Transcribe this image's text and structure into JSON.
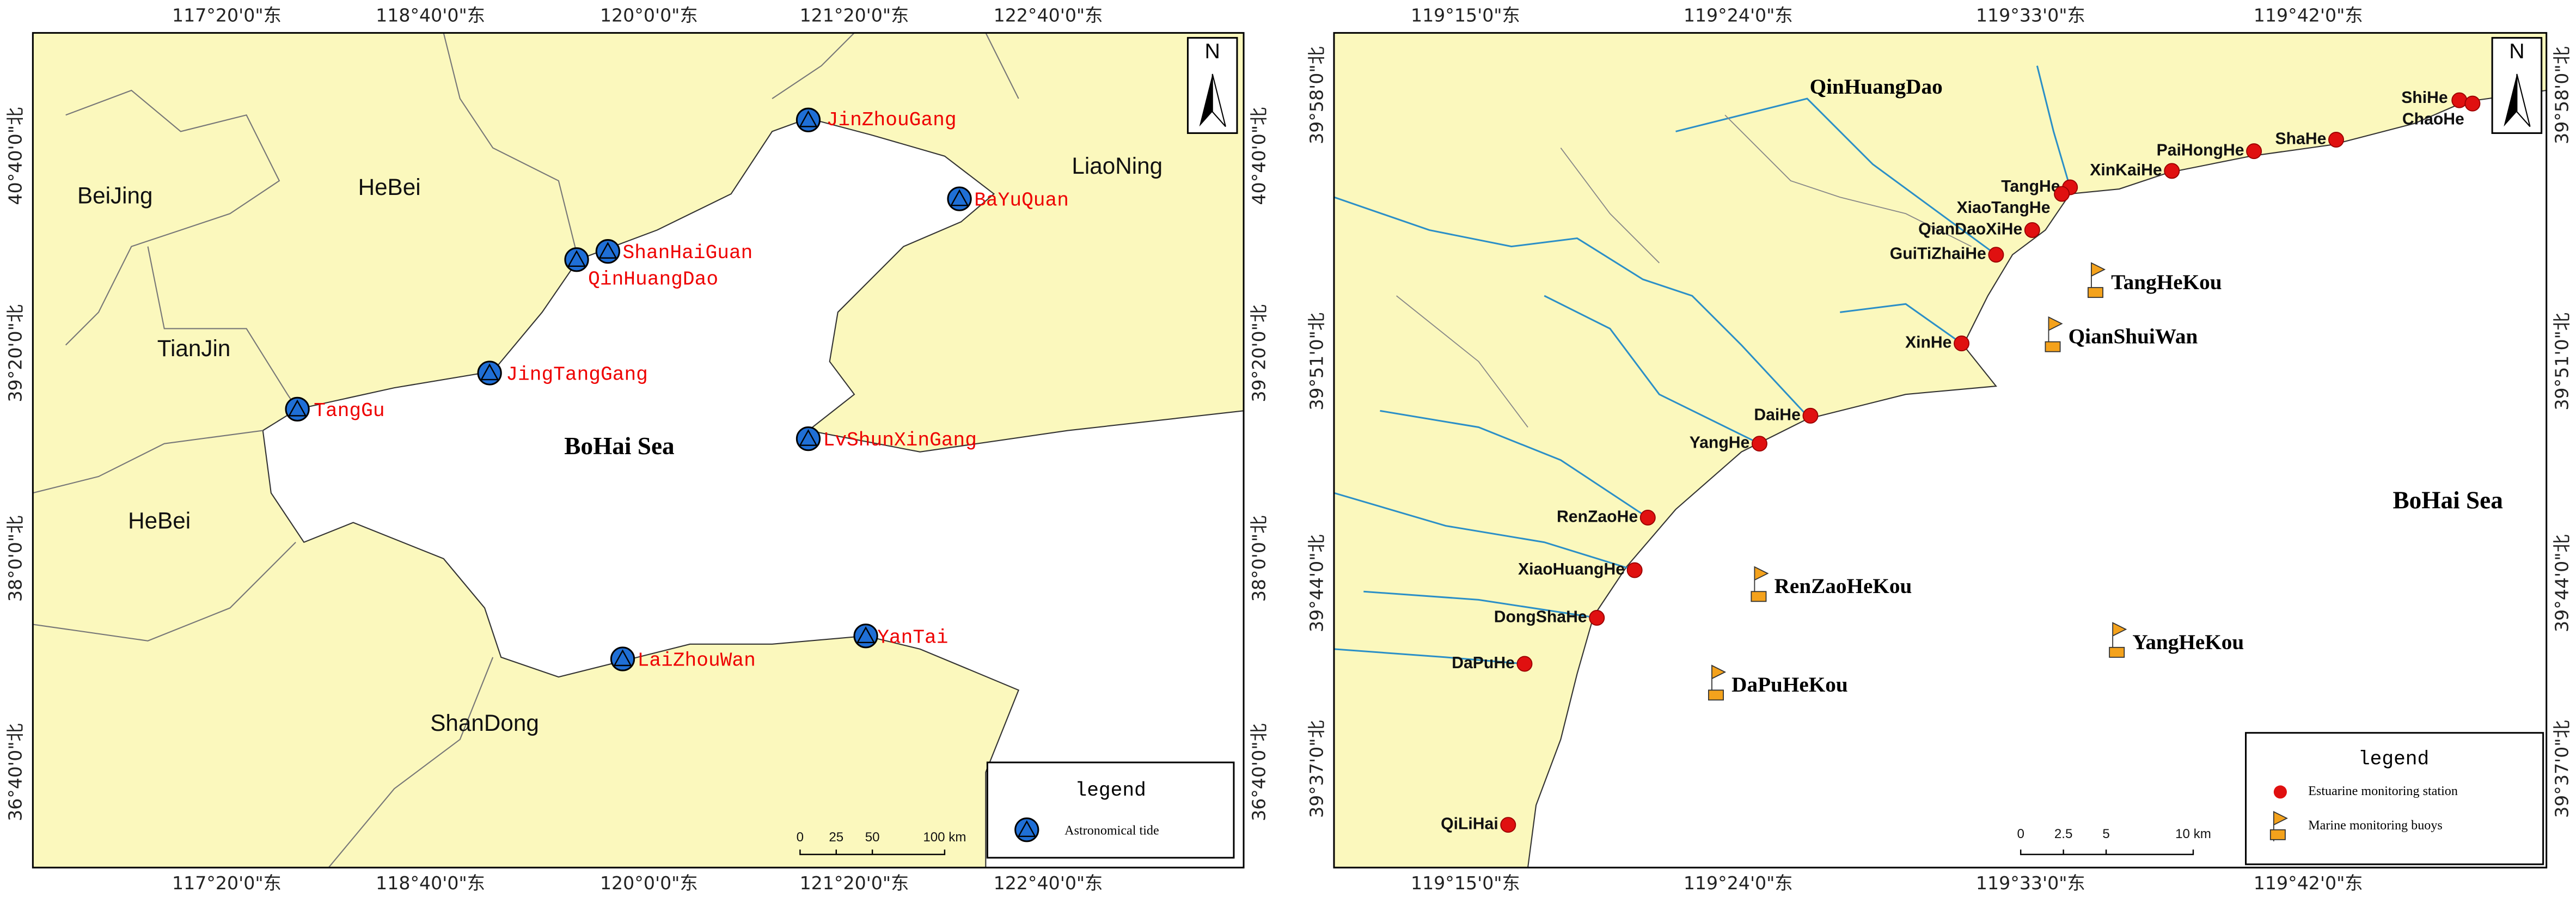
{
  "left_map": {
    "lon_ticks": [
      "117°20'0\"东",
      "118°40'0\"东",
      "120°0'0\"东",
      "121°20'0\"东",
      "122°40'0\"东"
    ],
    "lat_ticks": [
      "40°40'0\"北",
      "39°20'0\"北",
      "38°0'0\"北",
      "36°40'0\"北"
    ],
    "north": "N",
    "regions": [
      "BeiJing",
      "HeBei",
      "TianJin",
      "HeBei",
      "LiaoNing",
      "ShanDong"
    ],
    "sea": "BoHai Sea",
    "stations": [
      "JinZhouGang",
      "BaYuQuan",
      "ShanHaiGuan",
      "QinHuangDao",
      "JingTangGang",
      "TangGu",
      "LvShunXinGang",
      "YanTai",
      "LaiZhouWan"
    ],
    "legend": {
      "title": "legend",
      "items": [
        "Astronomical tide"
      ]
    },
    "scale": [
      "0",
      "25",
      "50",
      "100 km"
    ]
  },
  "right_map": {
    "lon_ticks": [
      "119°15'0\"东",
      "119°24'0\"东",
      "119°33'0\"东",
      "119°42'0\"东"
    ],
    "lat_ticks": [
      "39°58'0\"北",
      "39°51'0\"北",
      "39°44'0\"北",
      "39°37'0\"北"
    ],
    "north": "N",
    "region": "QinHuangDao",
    "sea": "BoHai Sea",
    "estuarine_stations": [
      "ShiHe",
      "ChaoHe",
      "ShaHe",
      "PaiHongHe",
      "XinKaiHe",
      "TangHe",
      "XiaoTangHe",
      "QianDaoXiHe",
      "GuiTiZhaiHe",
      "XinHe",
      "DaiHe",
      "YangHe",
      "RenZaoHe",
      "XiaoHuangHe",
      "DongShaHe",
      "DaPuHe",
      "QiLiHai"
    ],
    "buoys": [
      "TangHeKou",
      "QianShuiWan",
      "RenZaoHeKou",
      "YangHeKou",
      "DaPuHeKou"
    ],
    "legend": {
      "title": "legend",
      "items": [
        "Estuarine monitoring station",
        "Marine monitoring buoys"
      ]
    },
    "scale": [
      "0",
      "2.5",
      "5",
      "10 km"
    ]
  }
}
